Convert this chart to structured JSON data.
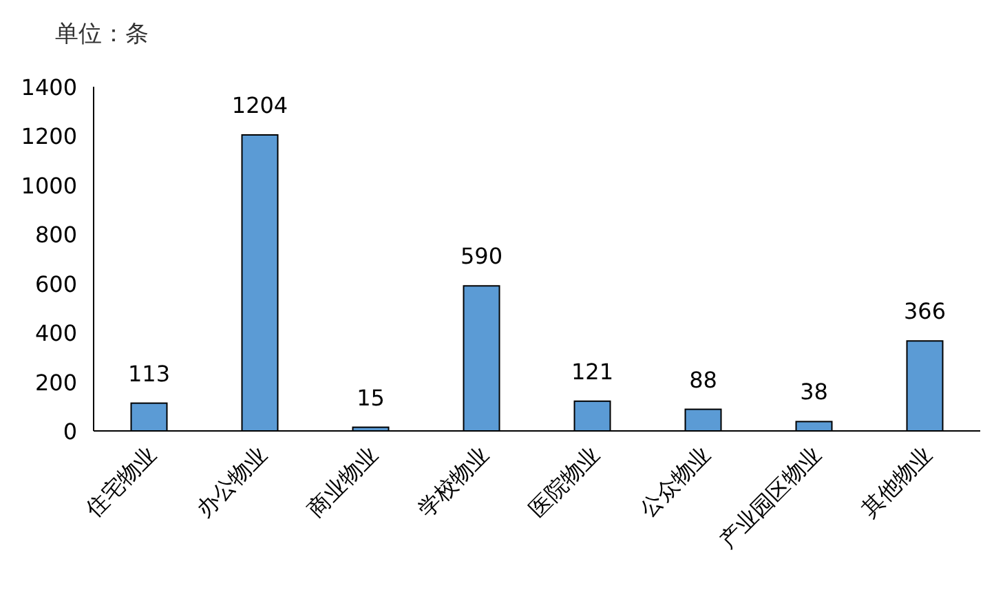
{
  "chart_data": {
    "type": "bar",
    "ylabel": "单位：条",
    "categories": [
      "住宅物业",
      "办公物业",
      "商业物业",
      "学校物业",
      "医院物业",
      "公众物业",
      "产业园区物业",
      "其他物业"
    ],
    "values": [
      113,
      1204,
      15,
      590,
      121,
      88,
      38,
      366
    ],
    "color": "#5b9bd5",
    "ylim": [
      0,
      1400
    ],
    "yticks": [
      0,
      200,
      400,
      600,
      800,
      1000,
      1200,
      1400
    ],
    "data_labels": true
  }
}
